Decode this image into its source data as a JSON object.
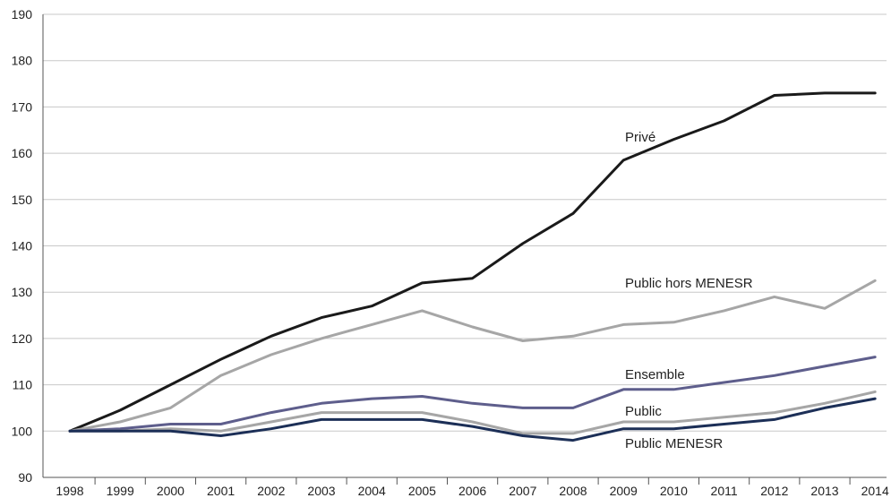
{
  "chart_data": {
    "type": "line",
    "title": "",
    "xlabel": "",
    "ylabel": "",
    "grid": "horizontal",
    "ylim": [
      90,
      190
    ],
    "yticks": [
      90,
      100,
      110,
      120,
      130,
      140,
      150,
      160,
      170,
      180,
      190
    ],
    "x": [
      "1998",
      "1999",
      "2000",
      "2001",
      "2002",
      "2003",
      "2004",
      "2005",
      "2006",
      "2007",
      "2008",
      "2009",
      "2010",
      "2011",
      "2012",
      "2013",
      "2014"
    ],
    "series": [
      {
        "name": "Privé",
        "color": "#1a1a1a",
        "values": [
          100,
          104.5,
          110,
          115.5,
          120.5,
          124.5,
          127,
          132,
          133,
          140.5,
          147,
          158.5,
          163,
          167,
          172.5,
          173,
          173
        ]
      },
      {
        "name": "Public hors MENESR",
        "color": "#a6a6a6",
        "values": [
          100,
          102,
          105,
          112,
          116.5,
          120,
          123,
          126,
          122.5,
          119.5,
          120.5,
          123,
          123.5,
          126,
          129,
          126.5,
          132.5
        ]
      },
      {
        "name": "Ensemble",
        "color": "#5e5e8c",
        "values": [
          100,
          100.5,
          101.5,
          101.5,
          104,
          106,
          107,
          107.5,
          106,
          105,
          105,
          109,
          109,
          110.5,
          112,
          114,
          116
        ]
      },
      {
        "name": "Public",
        "color": "#a6a6a6",
        "values": [
          100,
          100,
          100.5,
          100,
          102,
          104,
          104,
          104,
          102,
          99.5,
          99.5,
          102,
          102,
          103,
          104,
          106,
          108.5
        ]
      },
      {
        "name": "Public MENESR",
        "color": "#1c2f57",
        "values": [
          100,
          100,
          100,
          99,
          100.5,
          102.5,
          102.5,
          102.5,
          101,
          99,
          98,
          100.5,
          100.5,
          101.5,
          102.5,
          105,
          107
        ]
      }
    ]
  }
}
